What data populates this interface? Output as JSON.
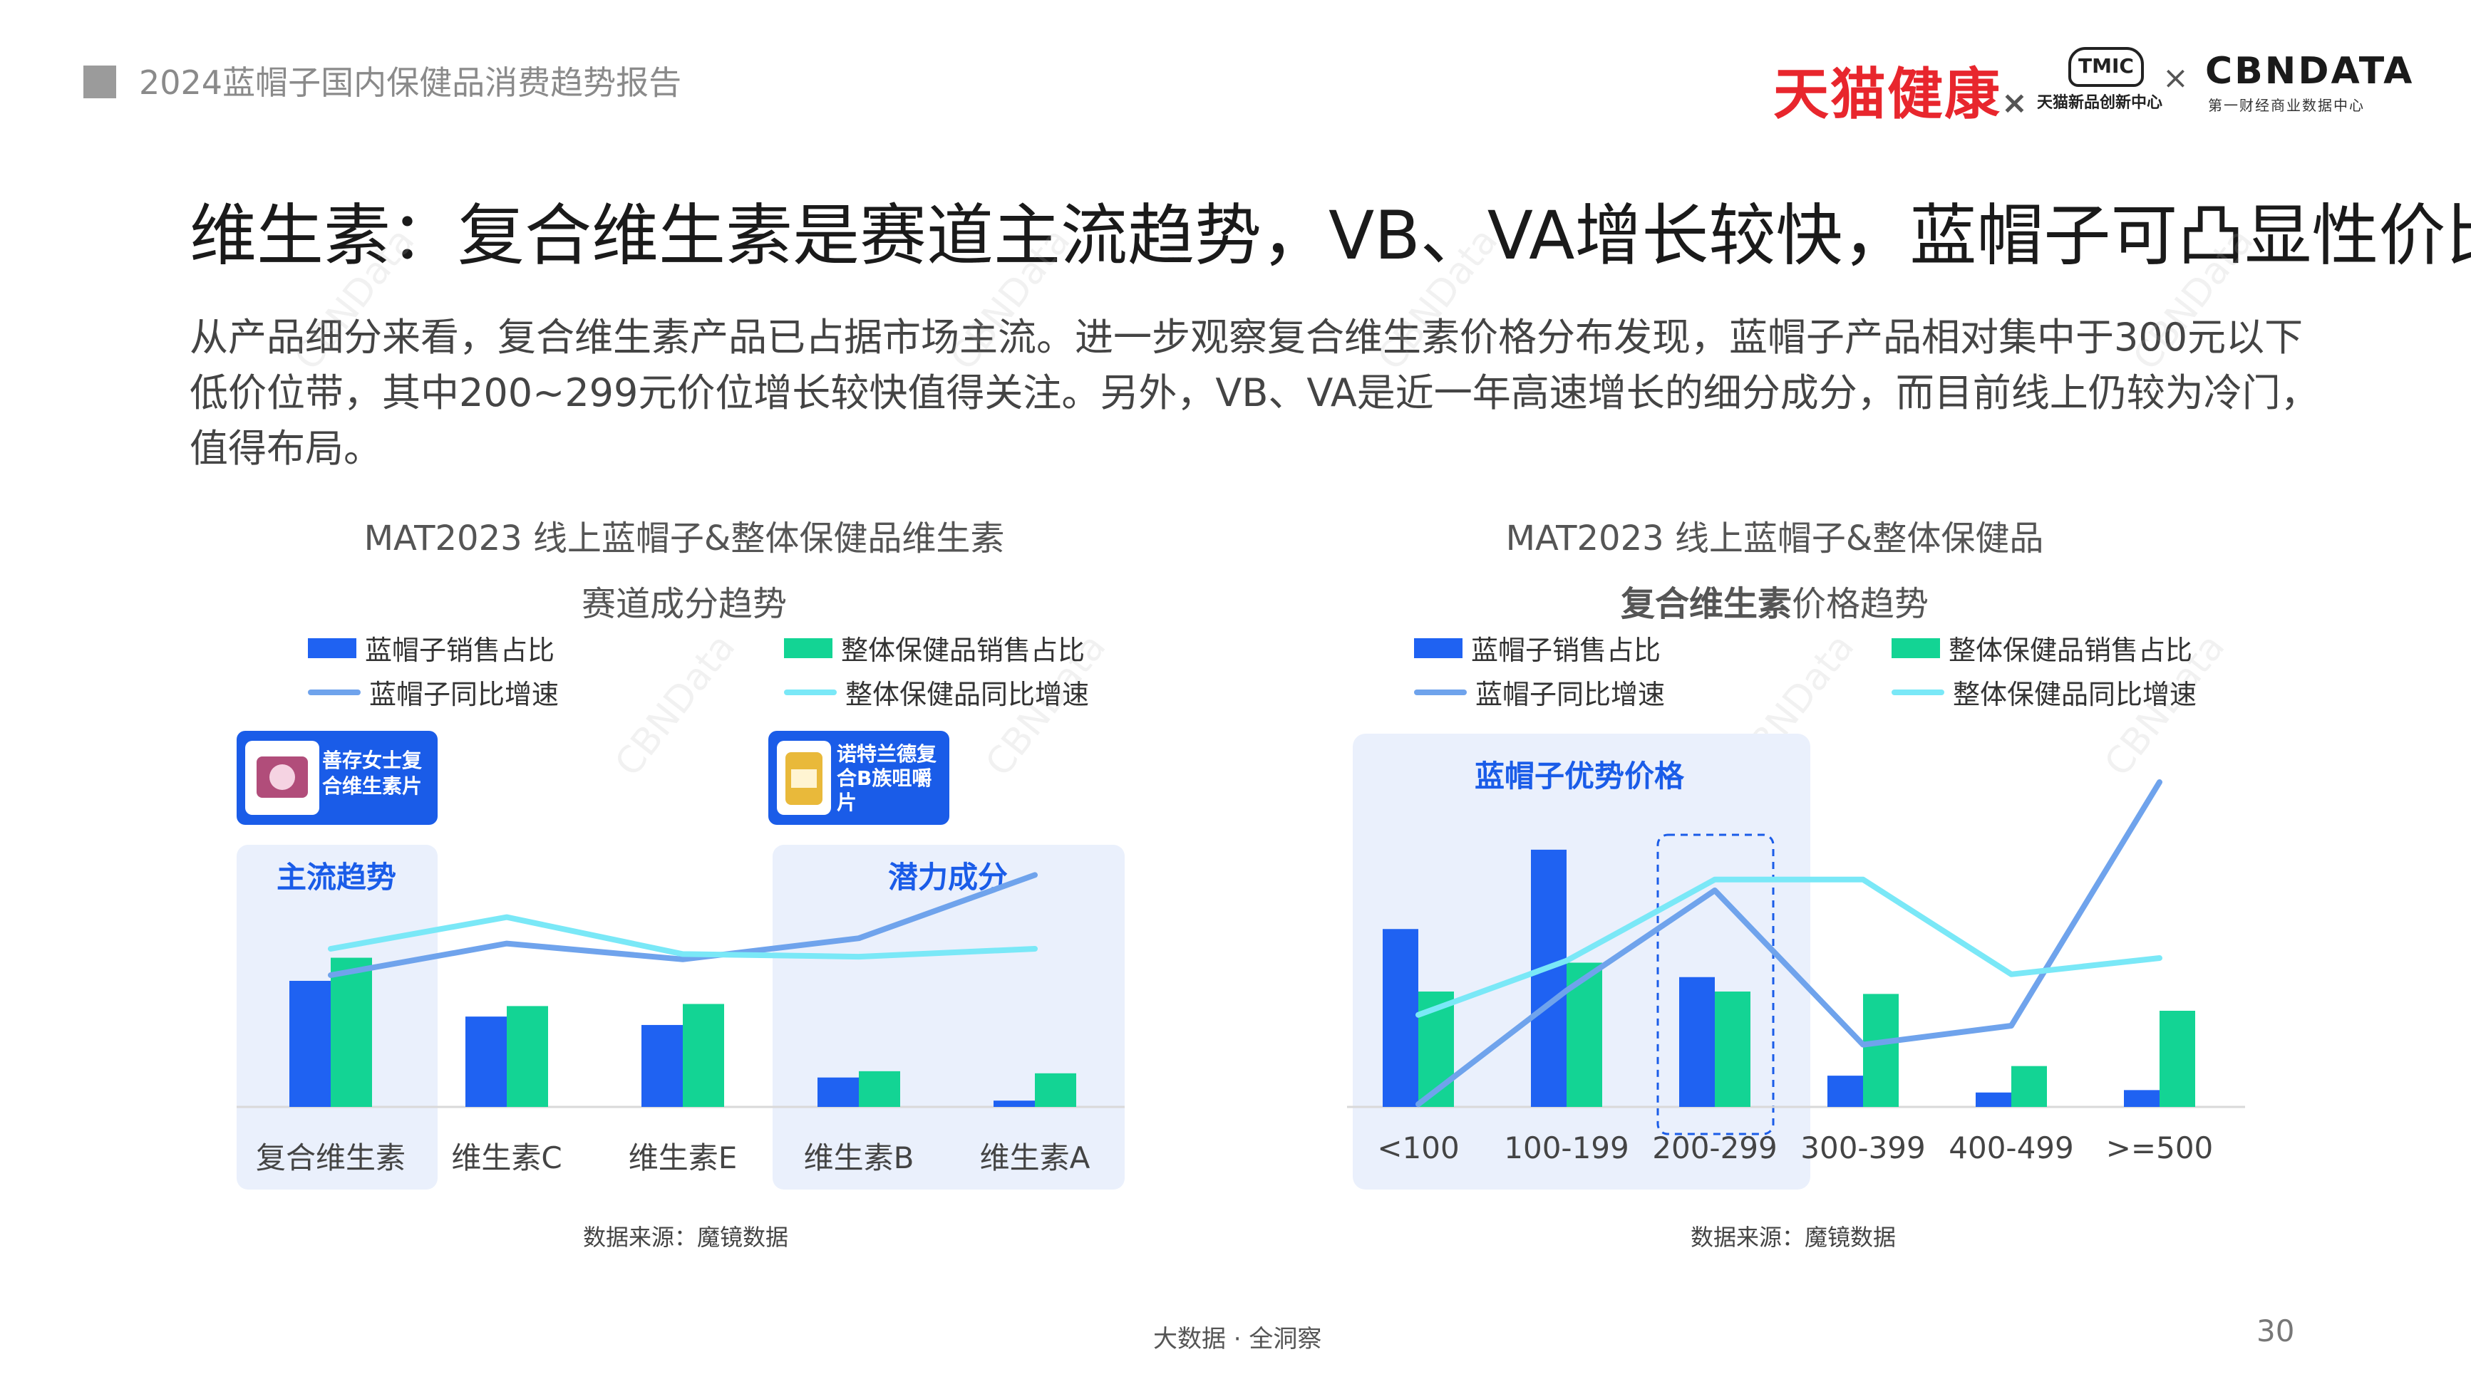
{
  "header": {
    "report_title": "2024蓝帽子国内保健品消费趋势报告",
    "brand_tmall": "天猫健康",
    "times": "×",
    "tmic_logo": "TMIC",
    "tmic_sub": "天猫新品创新中心",
    "cbn_logo": "CBNDATA",
    "cbn_sub": "第一财经商业数据中心"
  },
  "main": {
    "title": "维生素：复合维生素是赛道主流趋势，VB、VA增长较快，蓝帽子可凸显性价比",
    "paragraph": "从产品细分来看，复合维生素产品已占据市场主流。进一步观察复合维生素价格分布发现，蓝帽子产品相对集中于300元以下低价位带，其中200~299元价位增长较快值得关注。另外，VB、VA是近一年高速增长的细分成分，而目前线上仍较为冷门，值得布局。"
  },
  "colors": {
    "blue_bar": "#1f62f2",
    "green_bar": "#13d494",
    "blue_line": "#6fa3ec",
    "cyan_line": "#7ae8f7",
    "highlight_bg": "#eaf0fc",
    "tag_bg": "#1a5ce8"
  },
  "legend": {
    "bar1": "蓝帽子销售占比",
    "bar2": "整体保健品销售占比",
    "line1": "蓝帽子同比增速",
    "line2": "整体保健品同比增速"
  },
  "chart_data": [
    {
      "type": "bar",
      "title_line1": "MAT2023 线上蓝帽子&整体保健品维生素",
      "title_line2": "赛道成分趋势",
      "categories": [
        "复合维生素",
        "维生素C",
        "维生素E",
        "维生素B",
        "维生素A"
      ],
      "series": [
        {
          "name": "蓝帽子销售占比",
          "kind": "bar",
          "values": [
            30,
            21.5,
            19.5,
            7,
            1.5
          ]
        },
        {
          "name": "整体保健品销售占比",
          "kind": "bar",
          "values": [
            35.5,
            24,
            24.5,
            8.5,
            8
          ]
        },
        {
          "name": "蓝帽子同比增速",
          "kind": "line",
          "values": [
            25,
            31,
            28,
            32,
            44
          ]
        },
        {
          "name": "整体保健品同比增速",
          "kind": "line",
          "values": [
            30,
            36,
            29,
            28.5,
            30
          ]
        }
      ],
      "annotations": {
        "highlight_left": "主流趋势",
        "highlight_right": "潜力成分",
        "tag_left": "善存女士复合维生素片",
        "tag_right": "诺特兰德复合B族咀嚼片"
      },
      "source": "数据来源：魔镜数据"
    },
    {
      "type": "bar",
      "title_line1": "MAT2023 线上蓝帽子&整体保健品",
      "title_line2_bold": "复合维生素",
      "title_line2_rest": "价格趋势",
      "categories": [
        "<100",
        "100-199",
        "200-299",
        "300-399",
        "400-499",
        ">=500"
      ],
      "series": [
        {
          "name": "蓝帽子销售占比",
          "kind": "bar",
          "values": [
            37,
            53.5,
            27,
            6.5,
            3,
            3.5
          ]
        },
        {
          "name": "整体保健品销售占比",
          "kind": "bar",
          "values": [
            24,
            30,
            24,
            23.5,
            8.5,
            20
          ]
        },
        {
          "name": "蓝帽子同比增速",
          "kind": "line",
          "values": [
            0.5,
            21.5,
            40,
            11.5,
            15,
            60
          ]
        },
        {
          "name": "整体保健品同比增速",
          "kind": "line",
          "values": [
            17,
            27,
            42,
            42,
            24.5,
            27.5
          ]
        }
      ],
      "annotations": {
        "highlight": "蓝帽子优势价格"
      },
      "source": "数据来源：魔镜数据"
    }
  ],
  "footer": {
    "center": "大数据 · 全洞察",
    "page": "30"
  },
  "watermark": "CBNData"
}
